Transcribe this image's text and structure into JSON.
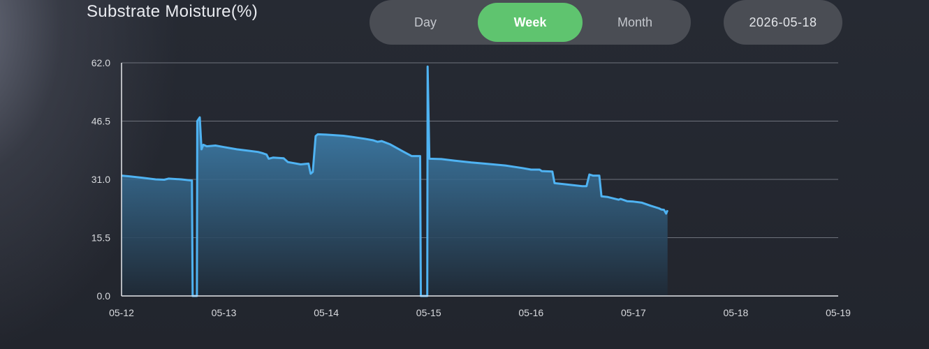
{
  "header": {
    "title": "Substrate Moisture(%)",
    "range_options": [
      "Day",
      "Week",
      "Month"
    ],
    "selected_range": "Week",
    "date": "2026-05-18"
  },
  "colors": {
    "accent_green": "#5fc46f",
    "line_blue": "#4fb3f2",
    "grid": "#6e727c",
    "axis": "#e6e8ec"
  },
  "chart_data": {
    "type": "area",
    "title": "Substrate Moisture(%)",
    "xlabel": "",
    "ylabel": "",
    "x_unit": "day (05-12 = 0)",
    "xlim": [
      "05-12",
      "05-19"
    ],
    "ylim": [
      0,
      62
    ],
    "x_ticks": [
      "05-12",
      "05-13",
      "05-14",
      "05-15",
      "05-16",
      "05-17",
      "05-18",
      "05-19"
    ],
    "y_ticks": [
      "0.0",
      "15.5",
      "31.0",
      "46.5",
      "62.0"
    ],
    "grid": true,
    "series": [
      {
        "values": [
          [
            "05-12 00:00",
            32.0
          ],
          [
            "05-12 02:00",
            31.8
          ],
          [
            "05-12 05:00",
            31.4
          ],
          [
            "05-12 08:00",
            31.0
          ],
          [
            "05-12 10:00",
            30.9
          ],
          [
            "05-12 11:00",
            31.2
          ],
          [
            "05-12 14:00",
            31.0
          ],
          [
            "05-12 16:30",
            30.7
          ],
          [
            "05-12 16:40",
            0.0
          ],
          [
            "05-12 17:40",
            0.0
          ],
          [
            "05-12 17:45",
            46.5
          ],
          [
            "05-12 18:20",
            47.5
          ],
          [
            "05-12 18:45",
            39.0
          ],
          [
            "05-12 19:10",
            40.2
          ],
          [
            "05-12 20:00",
            39.8
          ],
          [
            "05-12 22:00",
            40.0
          ],
          [
            "05-13 00:00",
            39.6
          ],
          [
            "05-13 03:00",
            39.0
          ],
          [
            "05-13 06:00",
            38.6
          ],
          [
            "05-13 08:00",
            38.3
          ],
          [
            "05-13 09:00",
            38.0
          ],
          [
            "05-13 10:00",
            37.6
          ],
          [
            "05-13 10:30",
            36.5
          ],
          [
            "05-13 11:30",
            36.8
          ],
          [
            "05-13 14:00",
            36.6
          ],
          [
            "05-13 15:00",
            35.6
          ],
          [
            "05-13 18:00",
            35.0
          ],
          [
            "05-13 19:50",
            35.2
          ],
          [
            "05-13 20:20",
            32.5
          ],
          [
            "05-13 20:50",
            33.0
          ],
          [
            "05-13 21:30",
            42.5
          ],
          [
            "05-13 22:00",
            43.0
          ],
          [
            "05-14 00:00",
            42.9
          ],
          [
            "05-14 04:00",
            42.6
          ],
          [
            "05-14 06:00",
            42.3
          ],
          [
            "05-14 09:00",
            41.8
          ],
          [
            "05-14 11:00",
            41.4
          ],
          [
            "05-14 12:00",
            41.0
          ],
          [
            "05-14 13:00",
            41.2
          ],
          [
            "05-14 15:00",
            40.3
          ],
          [
            "05-14 18:00",
            38.4
          ],
          [
            "05-14 20:00",
            37.2
          ],
          [
            "05-14 22:00",
            37.2
          ],
          [
            "05-14 22:10",
            0.0
          ],
          [
            "05-14 23:40",
            0.0
          ],
          [
            "05-14 23:45",
            61.0
          ],
          [
            "05-15 00:10",
            36.5
          ],
          [
            "05-15 03:00",
            36.4
          ],
          [
            "05-15 06:00",
            36.0
          ],
          [
            "05-15 10:00",
            35.5
          ],
          [
            "05-15 14:00",
            35.1
          ],
          [
            "05-15 18:00",
            34.7
          ],
          [
            "05-15 22:00",
            34.0
          ],
          [
            "05-16 00:00",
            33.6
          ],
          [
            "05-16 02:00",
            33.6
          ],
          [
            "05-16 02:30",
            33.2
          ],
          [
            "05-16 05:00",
            33.1
          ],
          [
            "05-16 05:30",
            30.0
          ],
          [
            "05-16 08:00",
            29.7
          ],
          [
            "05-16 12:00",
            29.2
          ],
          [
            "05-16 13:00",
            29.2
          ],
          [
            "05-16 13:40",
            32.3
          ],
          [
            "05-16 14:30",
            32.0
          ],
          [
            "05-16 16:00",
            32.0
          ],
          [
            "05-16 16:30",
            26.5
          ],
          [
            "05-16 18:00",
            26.3
          ],
          [
            "05-16 20:30",
            25.6
          ],
          [
            "05-16 21:00",
            25.8
          ],
          [
            "05-16 22:30",
            25.2
          ],
          [
            "05-17 00:00",
            25.1
          ],
          [
            "05-17 02:00",
            24.8
          ],
          [
            "05-17 04:00",
            24.0
          ],
          [
            "05-17 06:00",
            23.3
          ],
          [
            "05-17 08:00",
            22.8
          ],
          [
            "05-17 06:30",
            23.0
          ],
          [
            "05-17 07:10",
            22.9
          ],
          [
            "05-17 07:40",
            21.9
          ]
        ]
      }
    ]
  }
}
